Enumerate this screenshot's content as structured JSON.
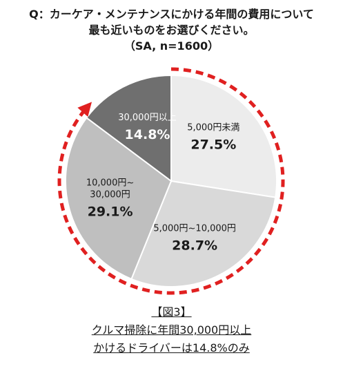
{
  "question": {
    "line1": "Q：カーケア・メンテナンスにかける年間の費用について",
    "line2": "最も近いものをお選びください。",
    "line3": "（SA, n=1600）"
  },
  "chart_data": {
    "type": "pie",
    "slices": [
      {
        "label_lines": [
          "5,000円未満"
        ],
        "value": 27.5,
        "display": "27.5%",
        "color": "#ececec",
        "text_color": "#1a1a1a"
      },
      {
        "label_lines": [
          "5,000円~10,000円"
        ],
        "value": 28.7,
        "display": "28.7%",
        "color": "#d9d9d9",
        "text_color": "#1a1a1a"
      },
      {
        "label_lines": [
          "10,000円~",
          "30,000円"
        ],
        "value": 29.1,
        "display": "29.1%",
        "color": "#bfbfbf",
        "text_color": "#1a1a1a"
      },
      {
        "label_lines": [
          "30,000円以上"
        ],
        "value": 14.8,
        "display": "14.8%",
        "color": "#6f6f6f",
        "text_color": "#ffffff"
      }
    ],
    "start": "12 o'clock",
    "direction": "clockwise",
    "highlight": {
      "style": "dashed-arrow-ring",
      "color": "#e02020"
    }
  },
  "caption": {
    "line1": "【図3】",
    "line2": "クルマ掃除に年間30,000円以上",
    "line3": "かけるドライバーは14.8%のみ"
  }
}
